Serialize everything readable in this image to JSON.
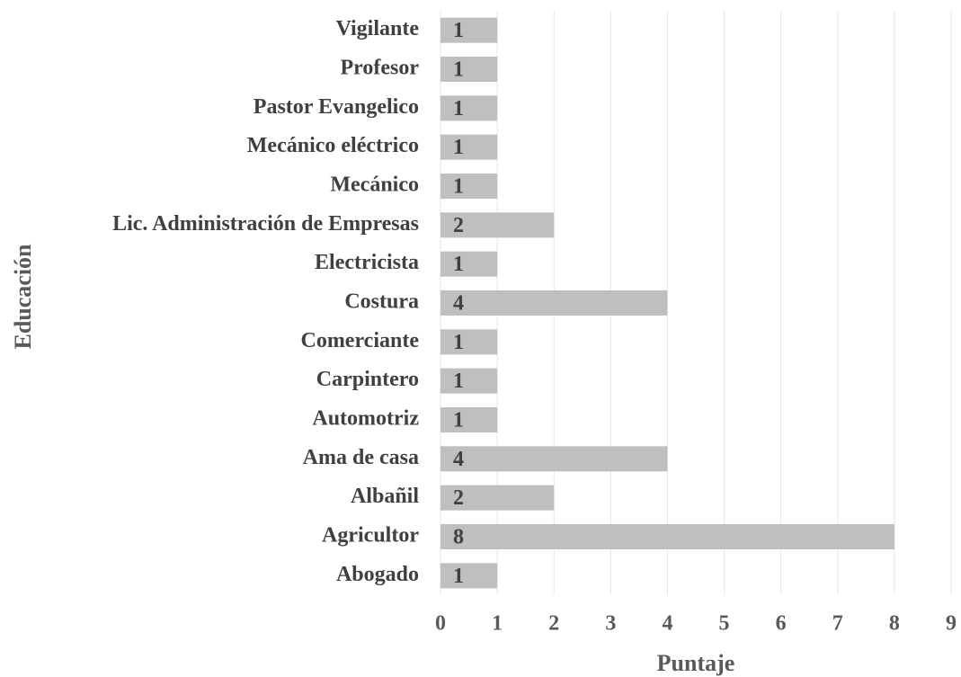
{
  "chart_data": {
    "type": "bar",
    "orientation": "horizontal",
    "x_label": "Puntaje",
    "y_label": "Educación",
    "categories": [
      "Vigilante",
      "Profesor",
      "Pastor Evangelico",
      "Mecánico eléctrico",
      "Mecánico",
      "Lic. Administración de Empresas",
      "Electricista",
      "Costura",
      "Comerciante",
      "Carpintero",
      "Automotriz",
      "Ama de casa",
      "Albañil",
      "Agricultor",
      "Abogado"
    ],
    "values": [
      1,
      1,
      1,
      1,
      1,
      2,
      1,
      4,
      1,
      1,
      1,
      4,
      2,
      8,
      1
    ],
    "color": "#bfbfbf",
    "xlim": [
      0,
      9
    ],
    "xticks": [
      0,
      1,
      2,
      3,
      4,
      5,
      6,
      7,
      8,
      9
    ],
    "grid": true
  }
}
